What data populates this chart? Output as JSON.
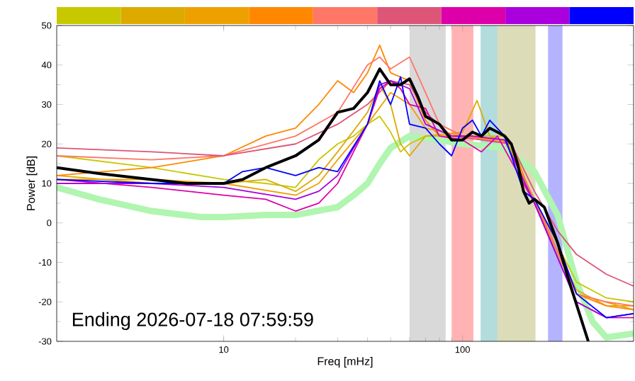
{
  "chart_data": {
    "type": "line",
    "xlabel": "Freq [mHz]",
    "ylabel": "Power [dB]",
    "log": "x",
    "xlim": [
      2,
      520
    ],
    "ylim": [
      -30,
      50
    ],
    "xticks": [
      10,
      100
    ],
    "yticks": [
      -30,
      -20,
      -10,
      0,
      10,
      20,
      30,
      40,
      50
    ],
    "annotations": [
      "Ending 2026-07-18 07:59:59"
    ],
    "bands": [
      {
        "axis": "x",
        "from": 60,
        "to": 85,
        "color": "#d9d9d9"
      },
      {
        "axis": "x",
        "from": 90,
        "to": 111,
        "color": "#ffb3b3"
      },
      {
        "axis": "x",
        "from": 119,
        "to": 140,
        "color": "#b3dcdc"
      },
      {
        "axis": "x",
        "from": 140,
        "to": 202,
        "color": "#dcdcb9"
      },
      {
        "axis": "x",
        "from": 228,
        "to": 262,
        "color": "#b3b3ff"
      }
    ],
    "series": [
      {
        "color": "#b0f5b0",
        "x": [
          2,
          3,
          5,
          8,
          10,
          15,
          20,
          30,
          35,
          40,
          45,
          50,
          60,
          80,
          100,
          150,
          200,
          250,
          300,
          350,
          400,
          520
        ],
        "values": [
          9,
          6,
          3,
          1.5,
          1.5,
          2,
          2,
          4,
          7,
          10,
          15,
          19,
          22,
          21,
          20,
          19,
          13,
          2,
          -15,
          -25,
          -29,
          -28
        ]
      },
      {
        "color": "#c8c800",
        "x": [
          2,
          5,
          10,
          15,
          20,
          25,
          30,
          35,
          40,
          45,
          50,
          55,
          60,
          70,
          100,
          150,
          200,
          300,
          400,
          520
        ],
        "values": [
          17,
          14,
          11,
          10,
          9,
          16,
          20,
          22,
          25,
          27,
          23,
          18,
          20,
          22,
          22,
          22,
          6,
          -15,
          -19,
          -20
        ]
      },
      {
        "color": "#ddaa00",
        "x": [
          2,
          5,
          10,
          15,
          20,
          25,
          30,
          40,
          45,
          50,
          55,
          60,
          70,
          100,
          115,
          130,
          160,
          200,
          300,
          400,
          520
        ],
        "values": [
          12,
          10,
          10,
          11,
          8,
          12,
          18,
          28,
          35,
          30,
          20,
          17,
          22,
          23,
          31,
          22,
          20,
          5,
          -17,
          -21,
          -21
        ]
      },
      {
        "color": "#eea000",
        "x": [
          2,
          5,
          10,
          20,
          25,
          30,
          40,
          50,
          60,
          70,
          100,
          150,
          200,
          300,
          520
        ],
        "values": [
          11,
          11,
          10,
          7,
          10,
          16,
          25,
          33,
          30,
          24,
          22,
          21,
          5,
          -18,
          -22
        ]
      },
      {
        "color": "#ff8800",
        "x": [
          2,
          5,
          10,
          15,
          20,
          25,
          30,
          35,
          40,
          45,
          50,
          60,
          70,
          80,
          100,
          130,
          160,
          200,
          250,
          300,
          400,
          520
        ],
        "values": [
          12,
          14,
          17,
          22,
          24,
          30,
          36,
          33,
          38,
          45,
          38,
          36,
          26,
          22,
          22,
          21,
          20,
          5,
          -5,
          -18,
          -21,
          -22
        ]
      },
      {
        "color": "#ff7766",
        "x": [
          2,
          5,
          10,
          20,
          30,
          40,
          45,
          50,
          60,
          70,
          80,
          100,
          150,
          200,
          300,
          400,
          520
        ],
        "values": [
          17,
          16,
          17,
          22,
          28,
          40,
          42,
          39,
          42,
          33,
          25,
          22,
          21,
          6,
          -18,
          -20,
          -21
        ]
      },
      {
        "color": "#dd5577",
        "x": [
          2,
          5,
          10,
          20,
          30,
          40,
          50,
          60,
          70,
          90,
          120,
          160,
          200,
          250,
          300,
          400,
          520
        ],
        "values": [
          19,
          18,
          17,
          20,
          25,
          30,
          36,
          35,
          28,
          22,
          21,
          20,
          8,
          -2,
          -8,
          -13,
          -16
        ]
      },
      {
        "color": "#dd00aa",
        "x": [
          2,
          5,
          10,
          15,
          20,
          25,
          30,
          40,
          45,
          50,
          55,
          60,
          70,
          80,
          100,
          120,
          140,
          180,
          200,
          300,
          400,
          520
        ],
        "values": [
          11,
          9,
          7,
          6,
          3,
          5,
          10,
          25,
          34,
          36,
          34,
          30,
          29,
          22,
          21,
          18,
          22,
          10,
          5,
          -20,
          -24,
          -24
        ]
      },
      {
        "color": "#aa00dd",
        "x": [
          2,
          5,
          10,
          20,
          25,
          30,
          40,
          45,
          50,
          60,
          70,
          90,
          110,
          150,
          200,
          300,
          400,
          520
        ],
        "values": [
          10,
          10,
          9,
          6,
          8,
          12,
          25,
          35,
          36,
          34,
          25,
          22,
          22,
          21,
          5,
          -20,
          -24,
          -23
        ]
      },
      {
        "color": "#0000ff",
        "x": [
          2,
          5,
          10,
          12,
          15,
          20,
          25,
          30,
          40,
          45,
          50,
          55,
          60,
          70,
          80,
          90,
          100,
          110,
          120,
          130,
          150,
          180,
          200,
          250,
          300,
          400,
          520
        ],
        "values": [
          11,
          10,
          10,
          13,
          14,
          12,
          14,
          13,
          25,
          36,
          30,
          37,
          25,
          24,
          20,
          17,
          24,
          26,
          22,
          26,
          22,
          8,
          6,
          -5,
          -18,
          -24,
          -23
        ]
      },
      {
        "color": "#000000",
        "x": [
          2,
          3,
          5,
          7,
          10,
          12,
          15,
          20,
          25,
          30,
          35,
          40,
          45,
          50,
          55,
          60,
          65,
          70,
          80,
          90,
          100,
          110,
          120,
          130,
          140,
          150,
          160,
          170,
          180,
          190,
          200,
          220,
          250,
          280,
          336
        ],
        "values": [
          14,
          12.5,
          11,
          10,
          10,
          11,
          14,
          17,
          21,
          28,
          29,
          33,
          39,
          35,
          35,
          36.5,
          32,
          27,
          25,
          21,
          21,
          23,
          22,
          24,
          23,
          22,
          20,
          15,
          8,
          5,
          6,
          4,
          -5,
          -15,
          -30
        ]
      }
    ]
  }
}
